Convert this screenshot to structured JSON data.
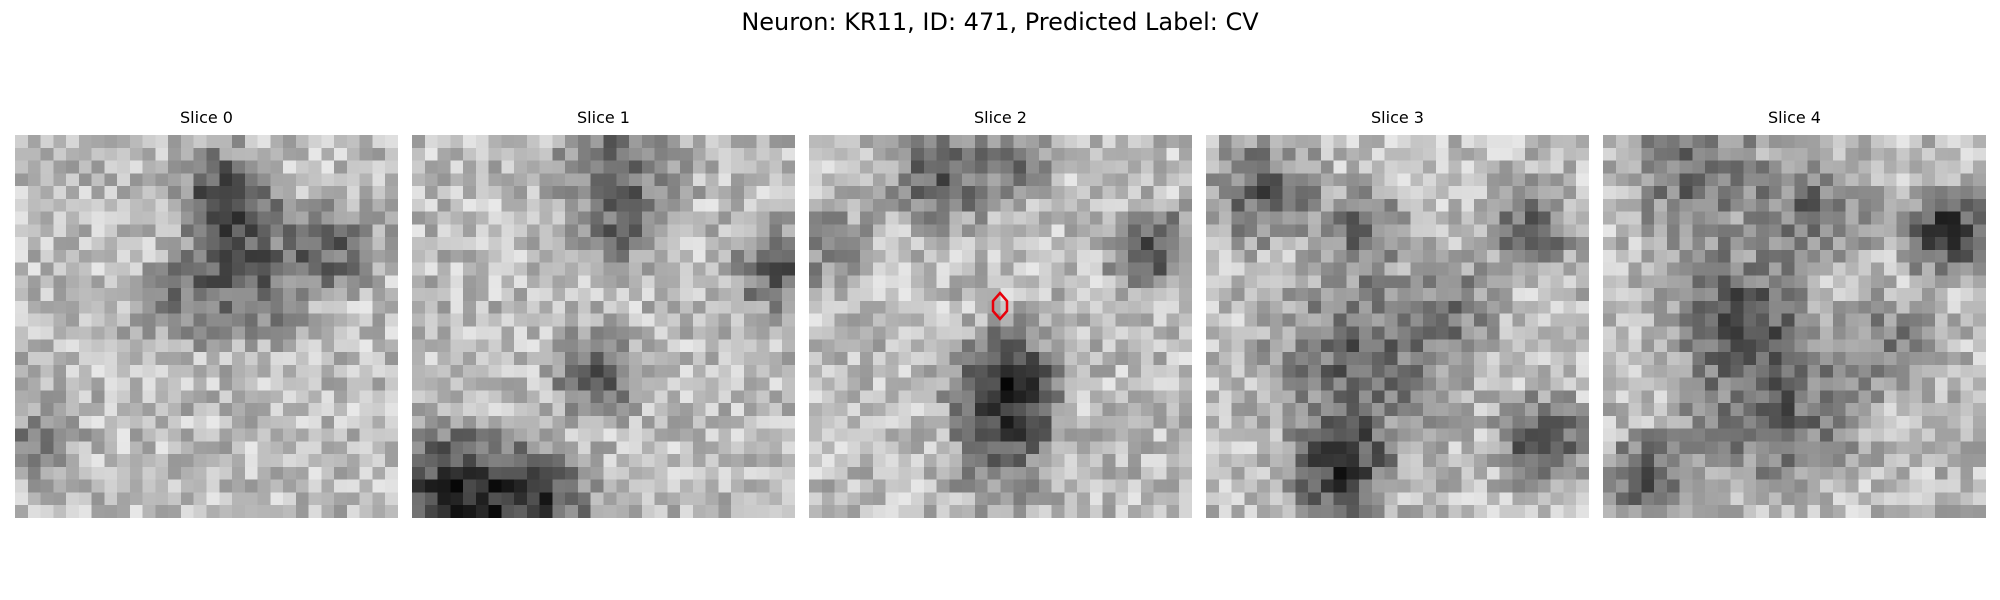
{
  "figure": {
    "title": "Neuron: KR11, ID: 471, Predicted Label: CV"
  },
  "slices": [
    {
      "title": "Slice 0"
    },
    {
      "title": "Slice 1"
    },
    {
      "title": "Slice 2"
    },
    {
      "title": "Slice 3"
    },
    {
      "title": "Slice 4"
    }
  ],
  "marker": {
    "slice_index": 2,
    "shape": "diamond",
    "color": "#e8000b"
  },
  "colors": {
    "background": "#ffffff",
    "colormap": "grayscale"
  }
}
